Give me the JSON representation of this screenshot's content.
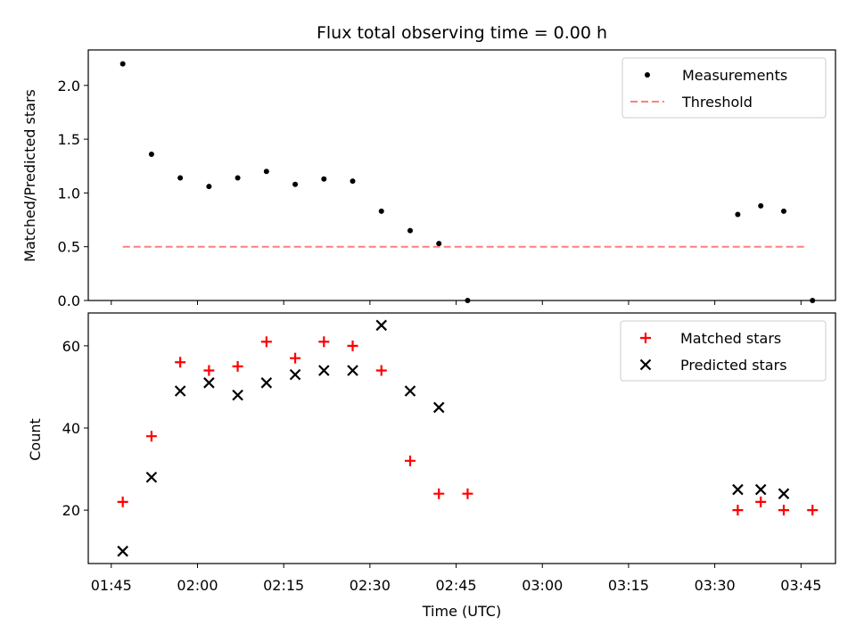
{
  "title": "Flux total observing time = 0.00 h",
  "colors": {
    "measurement": "#000000",
    "threshold": "#ff7f7f",
    "matched": "#ff0000",
    "predicted": "#000000"
  },
  "chart_data": [
    {
      "type": "scatter",
      "ylabel": "Matched/Predicted stars",
      "ylim": [
        0,
        2.33
      ],
      "yticks": [
        0.0,
        0.5,
        1.0,
        1.5,
        2.0
      ],
      "ytick_labels": [
        "0.0",
        "0.5",
        "1.0",
        "1.5",
        "2.0"
      ],
      "legend_position": "upper right",
      "series": [
        {
          "name": "Measurements",
          "marker": "dot",
          "x": [
            "01:47",
            "01:52",
            "01:57",
            "02:02",
            "02:07",
            "02:12",
            "02:17",
            "02:22",
            "02:27",
            "02:32",
            "02:37",
            "02:42",
            "02:47",
            "03:34",
            "03:38",
            "03:42",
            "03:47"
          ],
          "y": [
            2.2,
            1.36,
            1.14,
            1.06,
            1.14,
            1.2,
            1.08,
            1.13,
            1.11,
            0.83,
            0.65,
            0.53,
            0.0,
            0.8,
            0.88,
            0.83,
            0.0
          ]
        },
        {
          "name": "Threshold",
          "line": "dashed",
          "x": [
            "01:47",
            "03:46"
          ],
          "y": [
            0.5,
            0.5
          ]
        }
      ]
    },
    {
      "type": "scatter",
      "xlabel": "Time (UTC)",
      "ylabel": "Count",
      "ylim": [
        7,
        68
      ],
      "yticks": [
        20,
        40,
        60
      ],
      "ytick_labels": [
        "20",
        "40",
        "60"
      ],
      "xlim": [
        "01:41",
        "03:51"
      ],
      "xticks": [
        "01:45",
        "02:00",
        "02:15",
        "02:30",
        "02:45",
        "03:00",
        "03:15",
        "03:30",
        "03:45"
      ],
      "legend_position": "upper right",
      "series": [
        {
          "name": "Matched stars",
          "marker": "plus",
          "x": [
            "01:47",
            "01:52",
            "01:57",
            "02:02",
            "02:07",
            "02:12",
            "02:17",
            "02:22",
            "02:27",
            "02:32",
            "02:37",
            "02:42",
            "02:47",
            "03:34",
            "03:38",
            "03:42",
            "03:47"
          ],
          "y": [
            22,
            38,
            56,
            54,
            55,
            61,
            57,
            61,
            60,
            54,
            32,
            24,
            24,
            20,
            22,
            20,
            20
          ]
        },
        {
          "name": "Predicted stars",
          "marker": "x",
          "x": [
            "01:47",
            "01:52",
            "01:57",
            "02:02",
            "02:07",
            "02:12",
            "02:17",
            "02:22",
            "02:27",
            "02:32",
            "02:37",
            "02:42",
            "03:34",
            "03:38",
            "03:42"
          ],
          "y": [
            10,
            28,
            49,
            51,
            48,
            51,
            53,
            54,
            54,
            65,
            49,
            45,
            25,
            25,
            24
          ]
        }
      ]
    }
  ]
}
